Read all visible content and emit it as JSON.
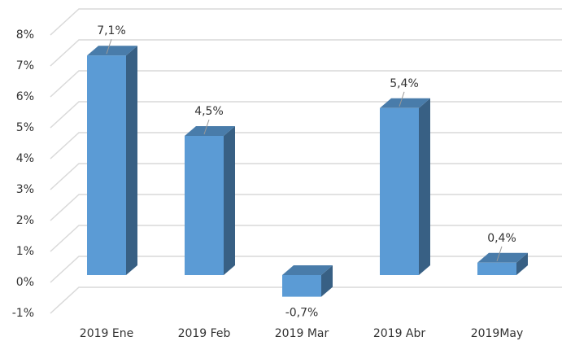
{
  "chart_data": {
    "type": "bar3d",
    "categories": [
      "2019 Ene",
      "2019 Feb",
      "2019 Mar",
      "2019 Abr",
      "2019May"
    ],
    "values": [
      7.1,
      4.5,
      -0.7,
      5.4,
      0.4
    ],
    "value_labels": [
      "7,1%",
      "4,5%",
      "-0,7%",
      "5,4%",
      "0,4%"
    ],
    "color": "#5b9bd5",
    "ylim": [
      -1,
      8
    ],
    "yticks": [
      {
        "value": -1,
        "label": "-1%"
      },
      {
        "value": 0,
        "label": "0%"
      },
      {
        "value": 1,
        "label": "1%"
      },
      {
        "value": 2,
        "label": "2%"
      },
      {
        "value": 3,
        "label": "3%"
      },
      {
        "value": 4,
        "label": "4%"
      },
      {
        "value": 5,
        "label": "5%"
      },
      {
        "value": 6,
        "label": "6%"
      },
      {
        "value": 7,
        "label": "7%"
      },
      {
        "value": 8,
        "label": "8%"
      }
    ],
    "grid": true
  }
}
